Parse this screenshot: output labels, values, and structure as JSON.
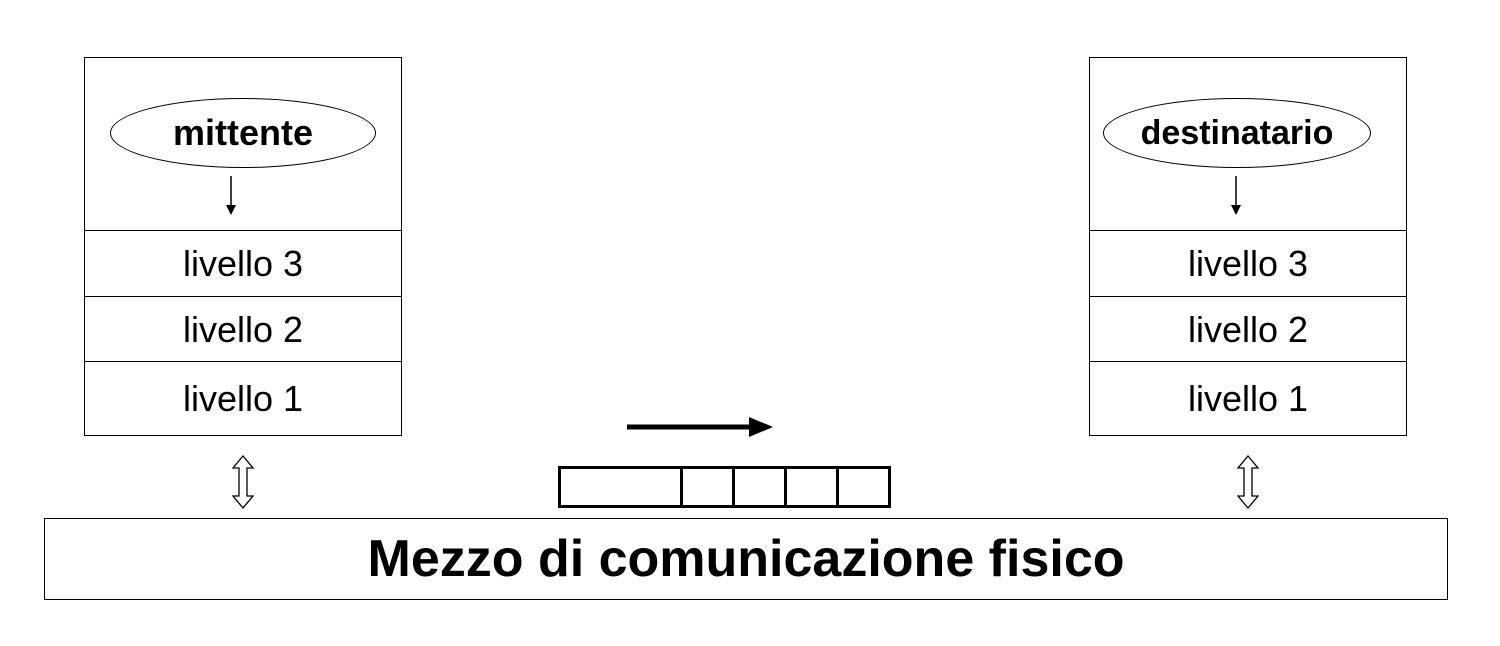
{
  "sender": {
    "label": "mittente",
    "layers": [
      "livello 3",
      "livello 2",
      "livello 1"
    ]
  },
  "receiver": {
    "label": "destinatario",
    "layers": [
      "livello 3",
      "livello 2",
      "livello 1"
    ]
  },
  "medium": {
    "label": "Mezzo di comunicazione fisico"
  },
  "frame": {
    "cells": 5
  }
}
